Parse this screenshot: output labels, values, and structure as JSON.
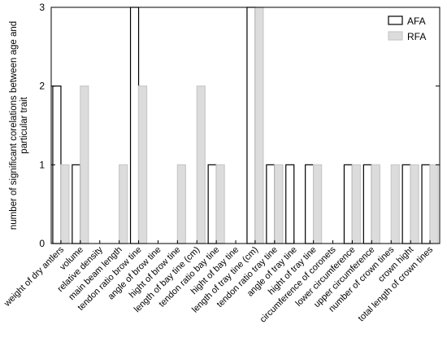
{
  "chart_data": {
    "type": "bar",
    "title": "",
    "xlabel": "",
    "ylabel": "number of significant corelations between age and particular trait",
    "ylim": [
      0,
      3
    ],
    "yticks": [
      0,
      1,
      2,
      3
    ],
    "grid": false,
    "legend_position": "top-right",
    "categories": [
      "weight of dry antlers",
      "volume",
      "relative density",
      "main beam length",
      "tendon ratio brow tine",
      "angle of brow tine",
      "hight of brow tine",
      "length of bay tine (cm)",
      "tendon ratio bay tine",
      "hight of bay tine",
      "length of tray tine (cm)",
      "tendon ratio tray tine",
      "angle of tray tine",
      "hight of tray tine",
      "circumference of coronets",
      "lower circumference",
      "upper circumference",
      "number of crown tines",
      "crown hight",
      "total length of crown tines"
    ],
    "series": [
      {
        "name": "AFA",
        "color": "#ffffff",
        "stroke": "#000000",
        "values": [
          2,
          1,
          0,
          0,
          3,
          0,
          0,
          0,
          1,
          0,
          3,
          1,
          1,
          1,
          0,
          1,
          1,
          0,
          1,
          1
        ]
      },
      {
        "name": "RFA",
        "color": "#dcdcdc",
        "stroke": "#c8c8c8",
        "values": [
          1,
          2,
          0,
          1,
          2,
          0,
          1,
          2,
          1,
          0,
          3,
          1,
          0,
          1,
          0,
          1,
          1,
          1,
          1,
          1
        ]
      }
    ]
  }
}
